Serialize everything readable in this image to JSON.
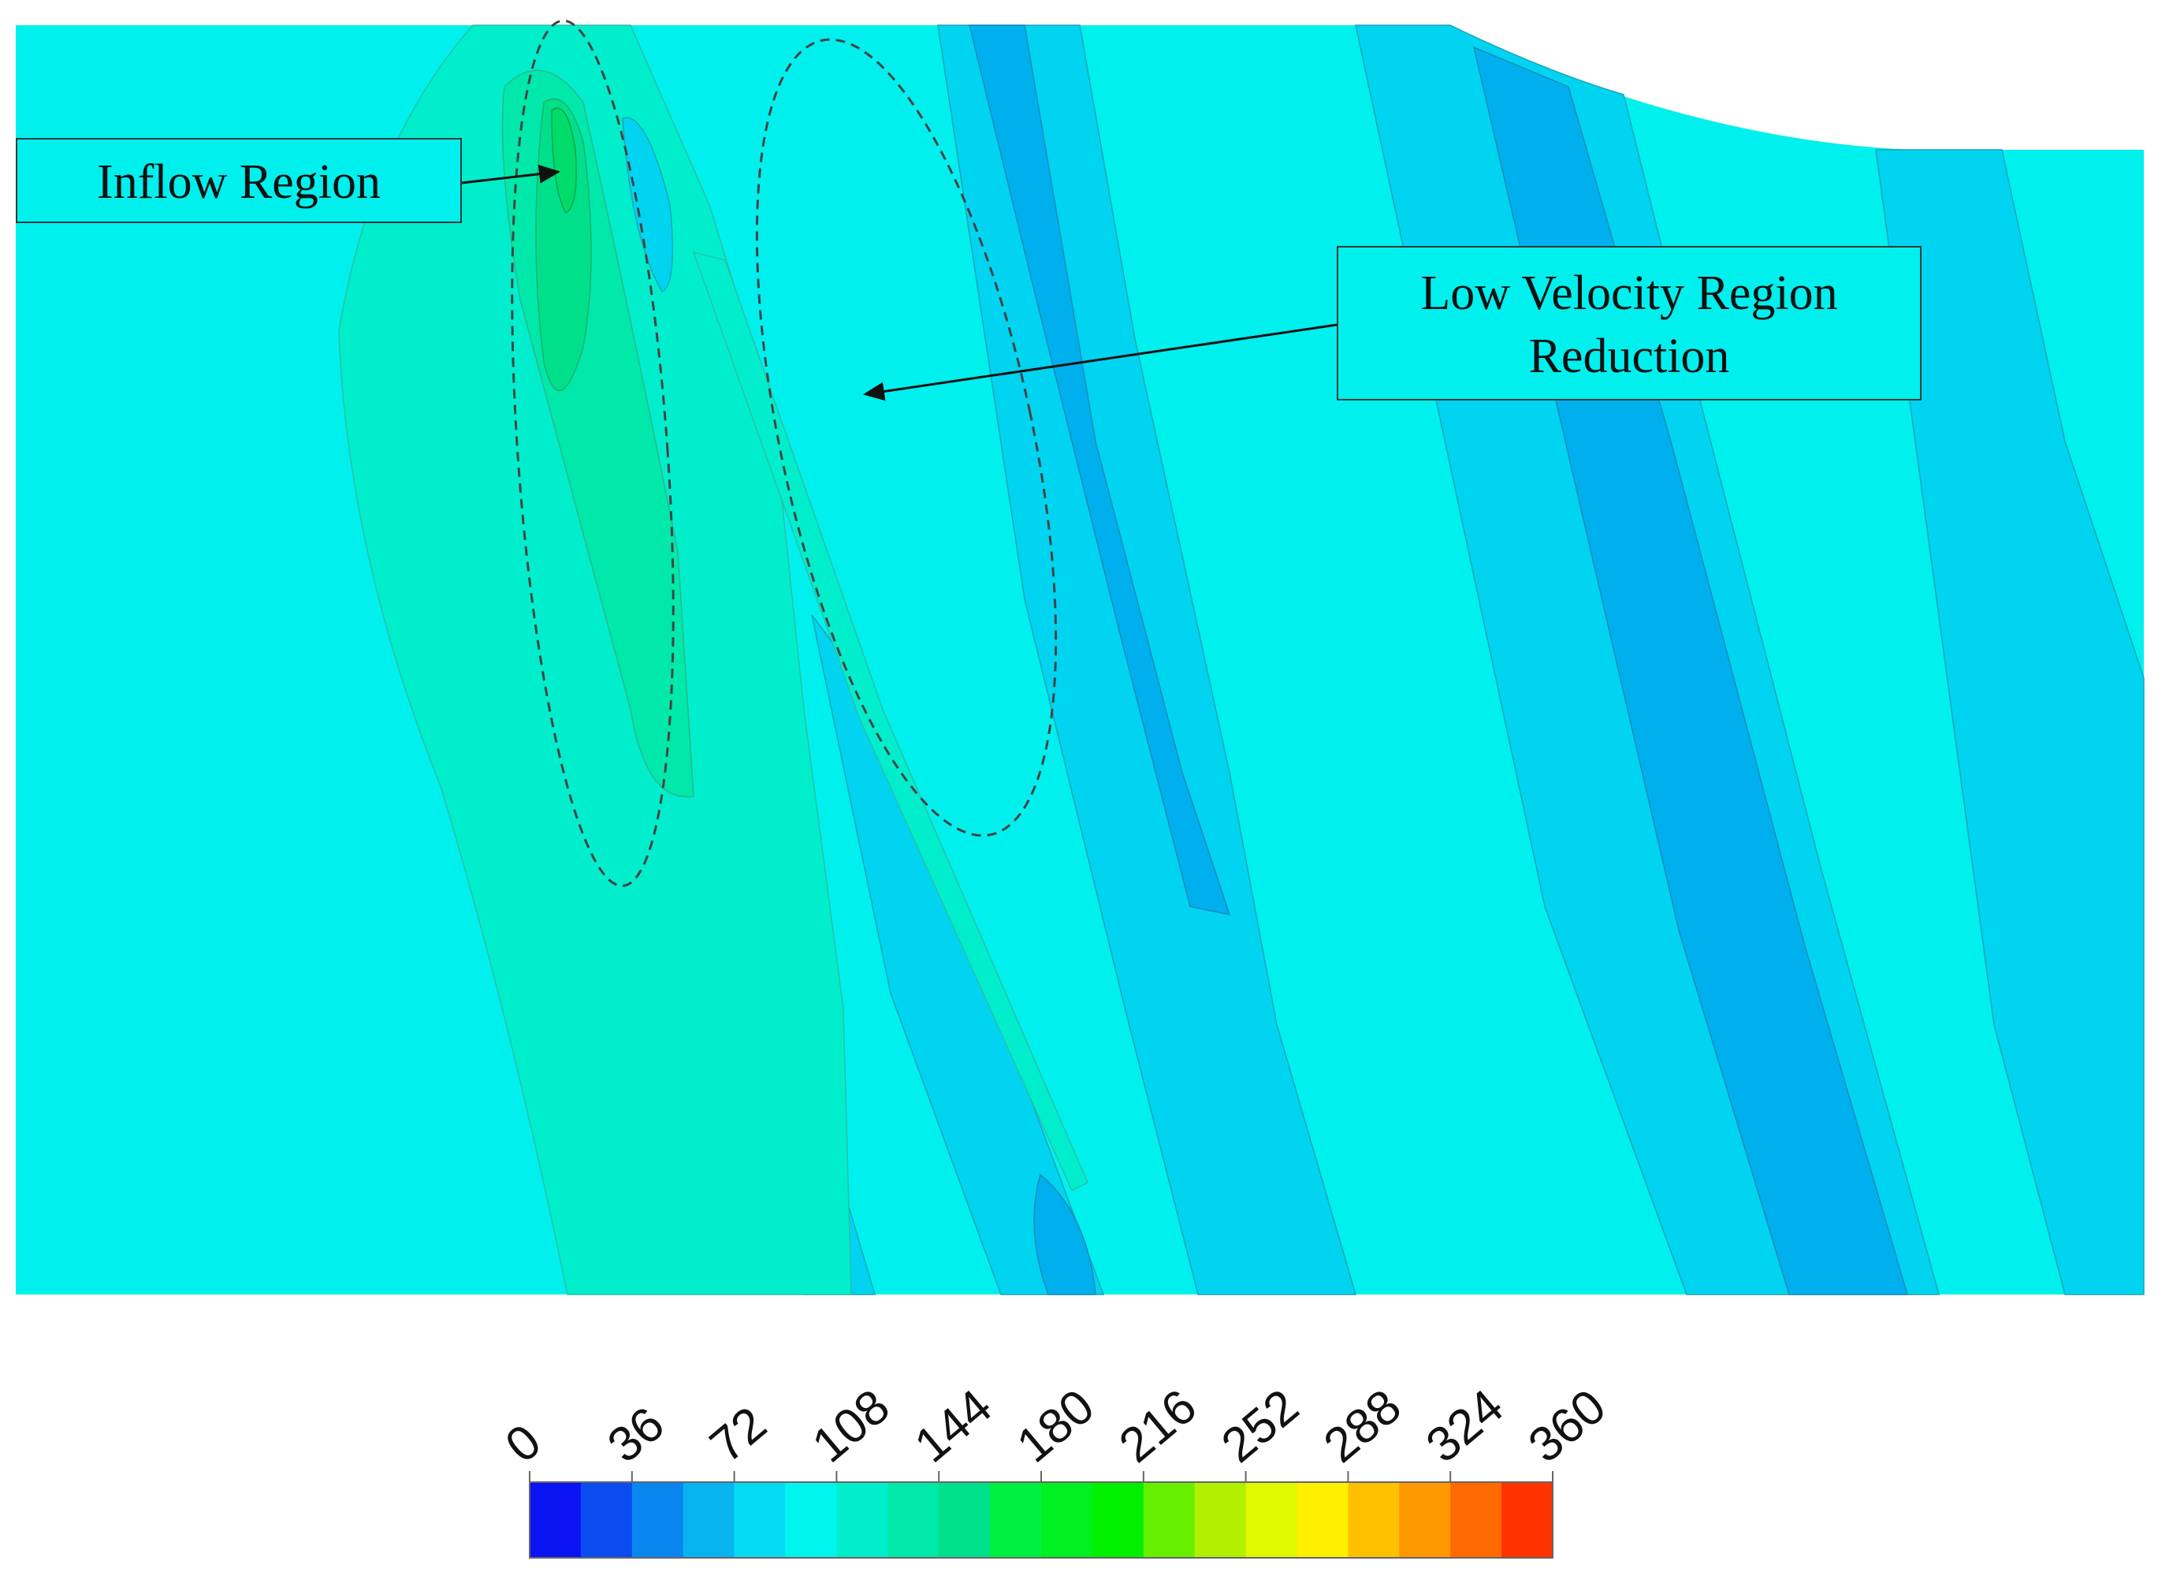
{
  "annotations": {
    "inflow": "Inflow Region",
    "low_velocity_line1": "Low Velocity Region",
    "low_velocity_line2": "Reduction"
  },
  "chart_data": {
    "type": "heatmap",
    "title": "",
    "colorbar": {
      "ticks": [
        0,
        36,
        72,
        108,
        144,
        180,
        216,
        252,
        288,
        324,
        360
      ],
      "range": [
        0,
        360
      ],
      "colors": [
        "#0a14f0",
        "#0b4cf0",
        "#0a86f0",
        "#08b4f0",
        "#05dcf2",
        "#00f5ee",
        "#00eecc",
        "#00e8aa",
        "#00e08a",
        "#00f040",
        "#00f020",
        "#00f000",
        "#66f000",
        "#b0f000",
        "#e0f800",
        "#fff000",
        "#ffc000",
        "#ff9800",
        "#ff6a00",
        "#ff3200"
      ],
      "orientation": "horizontal",
      "placement": "bottom"
    },
    "colors": {
      "background_field": "#00f0ee",
      "mid_blue": "#00d4f0",
      "deep_blue": "#00b0ee",
      "green_high": "#00e896",
      "green_peak": "#00dc6a"
    }
  }
}
